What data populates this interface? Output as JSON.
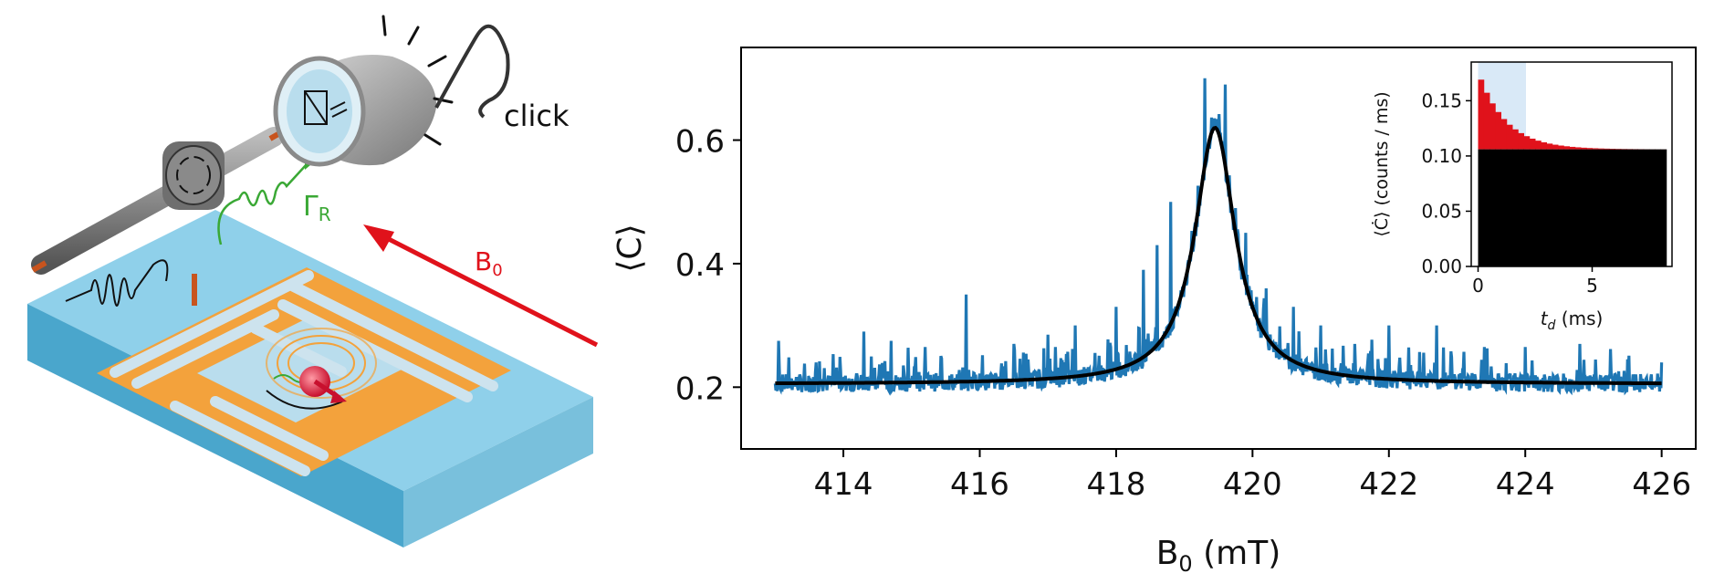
{
  "schematic": {
    "click_label": "click",
    "gamma_label": "Γ",
    "gamma_sub": "R",
    "field_label": "B",
    "field_sub": "0",
    "colors": {
      "substrate_top": "#8fd0ea",
      "substrate_side": "#5fb0d0",
      "resonator": "#f3a23c",
      "field_arrow": "#e0121b",
      "emission": "#3aa835",
      "detector": "#9a9a9a"
    },
    "icons": [
      "detector-icon",
      "circulator-icon",
      "coax-line-icon",
      "spin-icon",
      "microwave-pulse-icon"
    ]
  },
  "chart_data": [
    {
      "type": "line",
      "title": "",
      "xlabel": "B",
      "xlabel_sub": "0",
      "xlabel_unit": " (mT)",
      "ylabel": "⟨C⟩",
      "xlim": [
        412.5,
        426.5
      ],
      "ylim": [
        0.1,
        0.75
      ],
      "xticks": [
        414,
        416,
        418,
        420,
        422,
        424,
        426
      ],
      "yticks": [
        0.2,
        0.4,
        0.6
      ],
      "series": [
        {
          "role": "data",
          "color": "#1f77b4",
          "x_range": [
            413,
            426
          ],
          "baseline": 0.205,
          "peak_center": 419.45,
          "peak_height": 0.49,
          "peak_halfwidth": 0.35,
          "spikes": [
            [
              413.05,
              0.275
            ],
            [
              413.6,
              0.24
            ],
            [
              414.3,
              0.29
            ],
            [
              414.7,
              0.275
            ],
            [
              415.2,
              0.265
            ],
            [
              415.8,
              0.35
            ],
            [
              416.5,
              0.27
            ],
            [
              417.0,
              0.285
            ],
            [
              417.4,
              0.3
            ],
            [
              418.0,
              0.33
            ],
            [
              418.4,
              0.39
            ],
            [
              418.6,
              0.43
            ],
            [
              418.8,
              0.5
            ],
            [
              419.3,
              0.7
            ],
            [
              419.6,
              0.69
            ],
            [
              419.9,
              0.45
            ],
            [
              420.2,
              0.36
            ],
            [
              420.6,
              0.33
            ],
            [
              421.0,
              0.3
            ],
            [
              421.5,
              0.27
            ],
            [
              422.0,
              0.3
            ],
            [
              422.7,
              0.3
            ],
            [
              423.4,
              0.265
            ],
            [
              424.0,
              0.265
            ],
            [
              424.8,
              0.27
            ],
            [
              425.5,
              0.245
            ],
            [
              426.0,
              0.24
            ]
          ]
        },
        {
          "role": "fit",
          "color": "#000000",
          "model": "lorentzian",
          "baseline": 0.205,
          "center": 419.45,
          "amplitude": 0.415,
          "hwhm": 0.36
        }
      ]
    },
    {
      "type": "bar",
      "title": "",
      "xlabel": "t",
      "xlabel_sub": "d",
      "xlabel_unit": " (ms)",
      "ylabel": "⟨Ċ⟩ (counts / ms)",
      "xlim": [
        -0.3,
        8.5
      ],
      "ylim": [
        0.0,
        0.185
      ],
      "xticks": [
        0,
        5
      ],
      "yticks": [
        0.0,
        0.05,
        0.1,
        0.15
      ],
      "ytick_labels": [
        "0.00",
        "0.05",
        "0.10",
        "0.15"
      ],
      "shaded_window": [
        0,
        2.1
      ],
      "background_level": 0.106,
      "series": [
        {
          "role": "background",
          "color": "#000000"
        },
        {
          "role": "excess",
          "color": "#e0121b",
          "t0": 0,
          "tau_ms": 1.2,
          "amplitude": 0.07
        }
      ]
    }
  ]
}
